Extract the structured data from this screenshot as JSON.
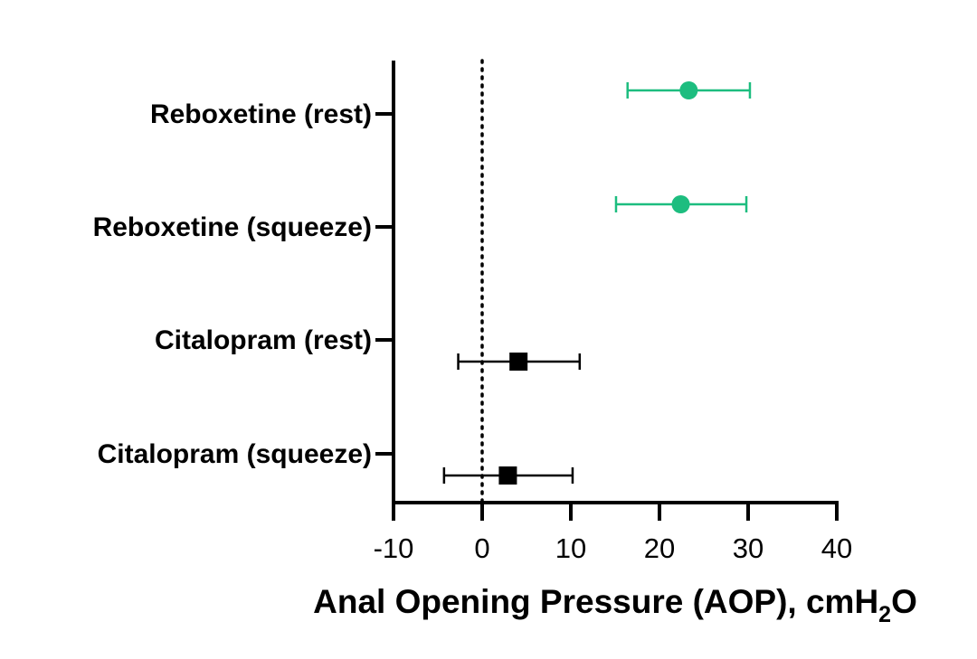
{
  "chart_data": {
    "type": "scatter",
    "subtype": "forest-plot",
    "title": "",
    "xlabel_main": "Anal Opening Pressure (AOP), cmH",
    "xlabel_subscript": "2",
    "xlabel_suffix": "O",
    "ylabel": "",
    "xlim": [
      -10,
      40
    ],
    "xticks": [
      "-10",
      "0",
      "10",
      "20",
      "30",
      "40"
    ],
    "reference_line": {
      "x": 0,
      "style": "dotted"
    },
    "grid": false,
    "legend": "none",
    "categories": [
      "Reboxetine (rest)",
      "Reboxetine (squeeze)",
      "Citalopram (rest)",
      "Citalopram (squeeze)"
    ],
    "points": [
      {
        "category": "Reboxetine (rest)",
        "estimate": 23.3,
        "ci_low": 16.4,
        "ci_high": 30.2,
        "marker": "circle",
        "color": "#1dbd7f"
      },
      {
        "category": "Reboxetine (squeeze)",
        "estimate": 22.4,
        "ci_low": 15.1,
        "ci_high": 29.8,
        "marker": "circle",
        "color": "#1dbd7f"
      },
      {
        "category": "Citalopram (rest)",
        "estimate": 4.1,
        "ci_low": -2.7,
        "ci_high": 11.0,
        "marker": "square",
        "color": "#000000"
      },
      {
        "category": "Citalopram (squeeze)",
        "estimate": 2.9,
        "ci_low": -4.3,
        "ci_high": 10.2,
        "marker": "square",
        "color": "#000000"
      }
    ]
  }
}
